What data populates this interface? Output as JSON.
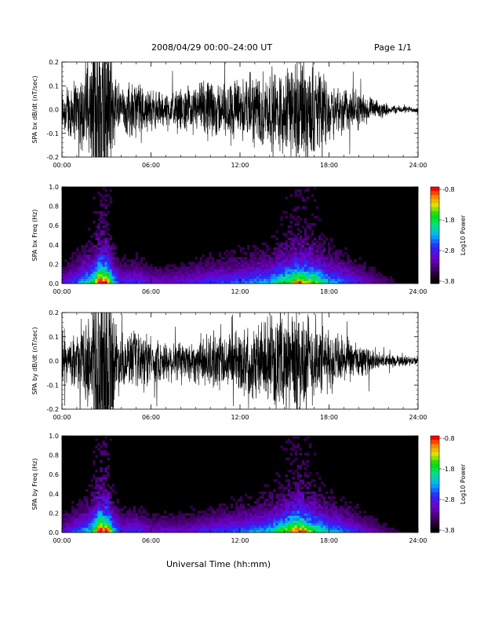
{
  "header": {
    "title": "2008/04/29  00:00–24:00 UT",
    "page": "Page 1/1"
  },
  "xlabel": "Universal Time (hh:mm)",
  "chart_data": [
    {
      "type": "line",
      "ylabel": "SPA bx dB/dt (nT/sec)",
      "xlim_hours": [
        0,
        24
      ],
      "xticks": [
        "00:00",
        "06:00",
        "12:00",
        "18:00",
        "24:00"
      ],
      "ylim": [
        -0.2,
        0.2
      ],
      "yticks": [
        "-0.2",
        "-0.1",
        "0.0",
        "0.1",
        "0.2"
      ],
      "envelope": {
        "x_hours": [
          0,
          1,
          2,
          2.5,
          3,
          3.5,
          4,
          5,
          6,
          7,
          8,
          9,
          10,
          11,
          12,
          13,
          14,
          15,
          16,
          17,
          18,
          19,
          20,
          21,
          22,
          23,
          24
        ],
        "amplitude": [
          0.1,
          0.14,
          0.22,
          0.45,
          0.45,
          0.18,
          0.09,
          0.12,
          0.08,
          0.07,
          0.08,
          0.1,
          0.12,
          0.11,
          0.13,
          0.15,
          0.16,
          0.18,
          0.22,
          0.18,
          0.12,
          0.1,
          0.08,
          0.04,
          0.02,
          0.015,
          0.012
        ]
      }
    },
    {
      "type": "heatmap",
      "ylabel": "SPA bx Freq (Hz)",
      "xlim_hours": [
        0,
        24
      ],
      "xticks": [
        "00:00",
        "06:00",
        "12:00",
        "18:00",
        "24:00"
      ],
      "ylim": [
        0,
        1
      ],
      "yticks": [
        "0.0",
        "0.2",
        "0.4",
        "0.6",
        "0.8",
        "1.0"
      ],
      "colorbar": {
        "label": "Log10 Power",
        "ticks": [
          "-0.8",
          "-1.8",
          "-2.8",
          "-3.8"
        ],
        "range": [
          -3.8,
          -0.8
        ]
      },
      "activity": {
        "x_hours": [
          0,
          1,
          2,
          2.5,
          3,
          3.5,
          4,
          5,
          6,
          7,
          8,
          9,
          10,
          11,
          12,
          13,
          14,
          15,
          16,
          17,
          18,
          19,
          20,
          21,
          22,
          23,
          24
        ],
        "level": [
          0.3,
          0.45,
          0.65,
          1.0,
          1.0,
          0.55,
          0.35,
          0.4,
          0.3,
          0.3,
          0.32,
          0.35,
          0.4,
          0.42,
          0.45,
          0.5,
          0.55,
          0.7,
          0.9,
          0.75,
          0.55,
          0.45,
          0.35,
          0.25,
          0.18,
          0.12,
          0.1
        ]
      }
    },
    {
      "type": "line",
      "ylabel": "SPA by dB/dt (nT/sec)",
      "xlim_hours": [
        0,
        24
      ],
      "xticks": [
        "00:00",
        "06:00",
        "12:00",
        "18:00",
        "24:00"
      ],
      "ylim": [
        -0.2,
        0.2
      ],
      "yticks": [
        "-0.2",
        "-0.1",
        "0.0",
        "0.1",
        "0.2"
      ],
      "envelope": {
        "x_hours": [
          0,
          1,
          2,
          2.5,
          3,
          3.5,
          4,
          5,
          6,
          7,
          8,
          9,
          10,
          11,
          12,
          13,
          14,
          15,
          16,
          17,
          18,
          19,
          20,
          21,
          22,
          23,
          24
        ],
        "amplitude": [
          0.08,
          0.1,
          0.2,
          0.45,
          0.45,
          0.2,
          0.09,
          0.12,
          0.09,
          0.08,
          0.08,
          0.09,
          0.11,
          0.1,
          0.13,
          0.15,
          0.15,
          0.18,
          0.24,
          0.16,
          0.12,
          0.09,
          0.07,
          0.04,
          0.025,
          0.02,
          0.018
        ]
      }
    },
    {
      "type": "heatmap",
      "ylabel": "SPA by Freq (Hz)",
      "xlim_hours": [
        0,
        24
      ],
      "xticks": [
        "00:00",
        "06:00",
        "12:00",
        "18:00",
        "24:00"
      ],
      "ylim": [
        0,
        1
      ],
      "yticks": [
        "0.0",
        "0.2",
        "0.4",
        "0.6",
        "0.8",
        "1.0"
      ],
      "colorbar": {
        "label": "Log10 Power",
        "ticks": [
          "-0.8",
          "-1.8",
          "-2.8",
          "-3.8"
        ],
        "range": [
          -3.8,
          -0.8
        ]
      },
      "activity": {
        "x_hours": [
          0,
          1,
          2,
          2.5,
          3,
          3.5,
          4,
          5,
          6,
          7,
          8,
          9,
          10,
          11,
          12,
          13,
          14,
          15,
          16,
          17,
          18,
          19,
          20,
          21,
          22,
          23,
          24
        ],
        "level": [
          0.3,
          0.42,
          0.6,
          1.0,
          1.0,
          0.55,
          0.35,
          0.4,
          0.3,
          0.3,
          0.3,
          0.33,
          0.38,
          0.4,
          0.45,
          0.5,
          0.55,
          0.75,
          0.95,
          0.7,
          0.55,
          0.45,
          0.35,
          0.25,
          0.18,
          0.12,
          0.1
        ]
      }
    }
  ]
}
